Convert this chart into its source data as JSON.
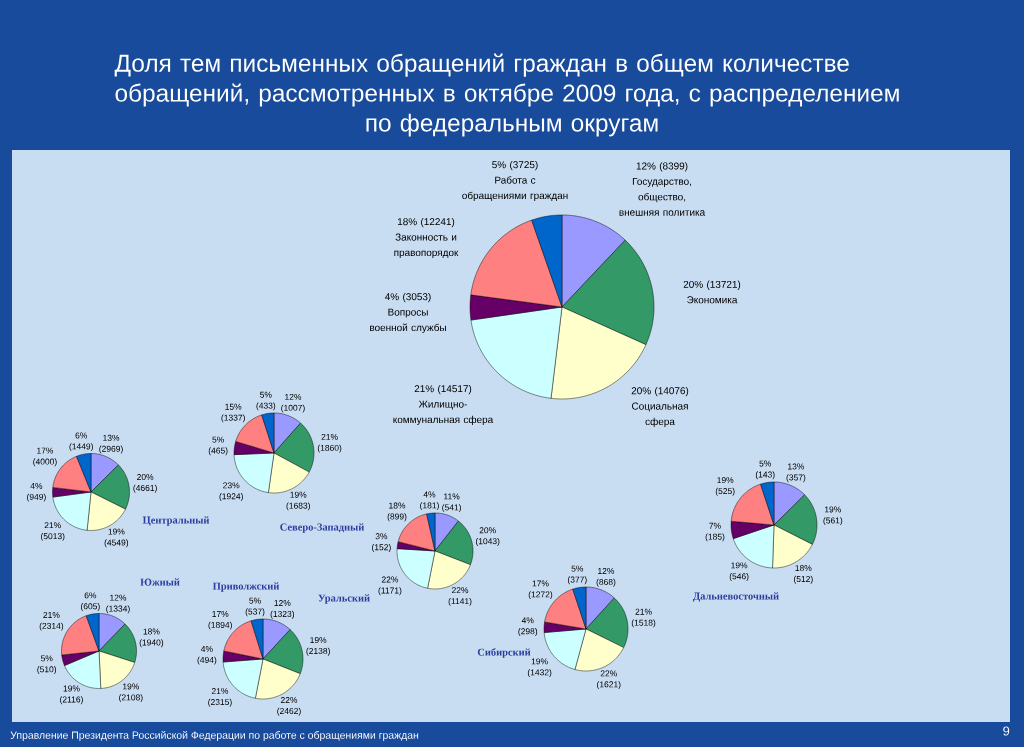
{
  "chart_data": [
    {
      "type": "pie",
      "title": "Доля тем письменных обращений граждан в общем количестве обращений, рассмотренных в октябре 2009 года, с распределением по федеральным округам",
      "categories": [
        "Государство, общество, внешняя политика",
        "Экономика",
        "Социальная сфера",
        "Жилищно-коммунальная сфера",
        "Вопросы военной службы",
        "Законность и правопорядок",
        "Работа с обращениями граждан"
      ],
      "values": [
        8399,
        13721,
        14076,
        14517,
        3053,
        12241,
        3725
      ],
      "value_labels": [
        "12% (8399)",
        "20% (13721)",
        "20% (14076)",
        "21% (14517)",
        "4% (3053)",
        "18% (12241)",
        "5% (3725)"
      ],
      "colors": [
        "#9999ff",
        "#339966",
        "#ffffcc",
        "#ccffff",
        "#660066",
        "#ff8080",
        "#0066cc"
      ],
      "annotations": [
        "Управление Президента Российской Федерации по работе с обращениями граждан",
        "9"
      ]
    },
    {
      "type": "pie",
      "title": "Центральный",
      "categories": [
        null,
        null,
        null,
        null,
        null,
        null,
        null
      ],
      "values": [
        2969,
        4661,
        4549,
        5013,
        949,
        4000,
        1449
      ],
      "value_labels": [
        "13% (2969)",
        "20% (4661)",
        "19% (4549)",
        "21% (5013)",
        "4% (949)",
        "17% (4000)",
        "6% (1449)"
      ],
      "colors": [
        "#9999ff",
        "#339966",
        "#ffffcc",
        "#ccffff",
        "#660066",
        "#ff8080",
        "#0066cc"
      ]
    },
    {
      "type": "pie",
      "title": "Северо-Западный",
      "categories": [
        null,
        null,
        null,
        null,
        null,
        null,
        null
      ],
      "values": [
        1007,
        1860,
        1683,
        1924,
        465,
        1337,
        433
      ],
      "value_labels": [
        "12% (1007)",
        "21% (1860)",
        "19% (1683)",
        "23% (1924)",
        "5% (465)",
        "15% (1337)",
        "5% (433)"
      ],
      "colors": [
        "#9999ff",
        "#339966",
        "#ffffcc",
        "#ccffff",
        "#660066",
        "#ff8080",
        "#0066cc"
      ]
    },
    {
      "type": "pie",
      "title": "Южный",
      "categories": [
        null,
        null,
        null,
        null,
        null,
        null,
        null
      ],
      "values": [
        1334,
        1940,
        2108,
        2116,
        510,
        2314,
        605
      ],
      "value_labels": [
        "12% (1334)",
        "18% (1940)",
        "19% (2108)",
        "19% (2116)",
        "5% (510)",
        "21% (2314)",
        "6% (605)"
      ],
      "colors": [
        "#9999ff",
        "#339966",
        "#ffffcc",
        "#ccffff",
        "#660066",
        "#ff8080",
        "#0066cc"
      ]
    },
    {
      "type": "pie",
      "title": "Приволжский",
      "categories": [
        null,
        null,
        null,
        null,
        null,
        null,
        null
      ],
      "values": [
        1323,
        2138,
        2462,
        2315,
        494,
        1894,
        537
      ],
      "value_labels": [
        "12% (1323)",
        "19% (2138)",
        "22% (2462)",
        "21% (2315)",
        "4% (494)",
        "17% (1894)",
        "5% (537)"
      ],
      "colors": [
        "#9999ff",
        "#339966",
        "#ffffcc",
        "#ccffff",
        "#660066",
        "#ff8080",
        "#0066cc"
      ]
    },
    {
      "type": "pie",
      "title": "Уральский",
      "categories": [
        null,
        null,
        null,
        null,
        null,
        null,
        null
      ],
      "values": [
        541,
        1043,
        1141,
        1171,
        152,
        899,
        181
      ],
      "value_labels": [
        "11% (541)",
        "20% (1043)",
        "22% (1141)",
        "22% (1171)",
        "3% (152)",
        "18% (899)",
        "4% (181)"
      ],
      "colors": [
        "#9999ff",
        "#339966",
        "#ffffcc",
        "#ccffff",
        "#660066",
        "#ff8080",
        "#0066cc"
      ]
    },
    {
      "type": "pie",
      "title": "Сибирский",
      "categories": [
        null,
        null,
        null,
        null,
        null,
        null,
        null
      ],
      "values": [
        868,
        1518,
        1621,
        1432,
        298,
        1272,
        377
      ],
      "value_labels": [
        "12% (868)",
        "21% (1518)",
        "22% (1621)",
        "19% (1432)",
        "4% (298)",
        "17% (1272)",
        "5% (377)"
      ],
      "colors": [
        "#9999ff",
        "#339966",
        "#ffffcc",
        "#ccffff",
        "#660066",
        "#ff8080",
        "#0066cc"
      ]
    },
    {
      "type": "pie",
      "title": "Дальневосточный",
      "categories": [
        null,
        null,
        null,
        null,
        null,
        null,
        null
      ],
      "values": [
        357,
        561,
        512,
        546,
        185,
        525,
        143
      ],
      "value_labels": [
        "13% (357)",
        "19% (561)",
        "18% (512)",
        "19% (546)",
        "7% (185)",
        "19% (525)",
        "5% (143)"
      ],
      "colors": [
        "#9999ff",
        "#339966",
        "#ffffcc",
        "#ccffff",
        "#660066",
        "#ff8080",
        "#0066cc"
      ]
    }
  ]
}
